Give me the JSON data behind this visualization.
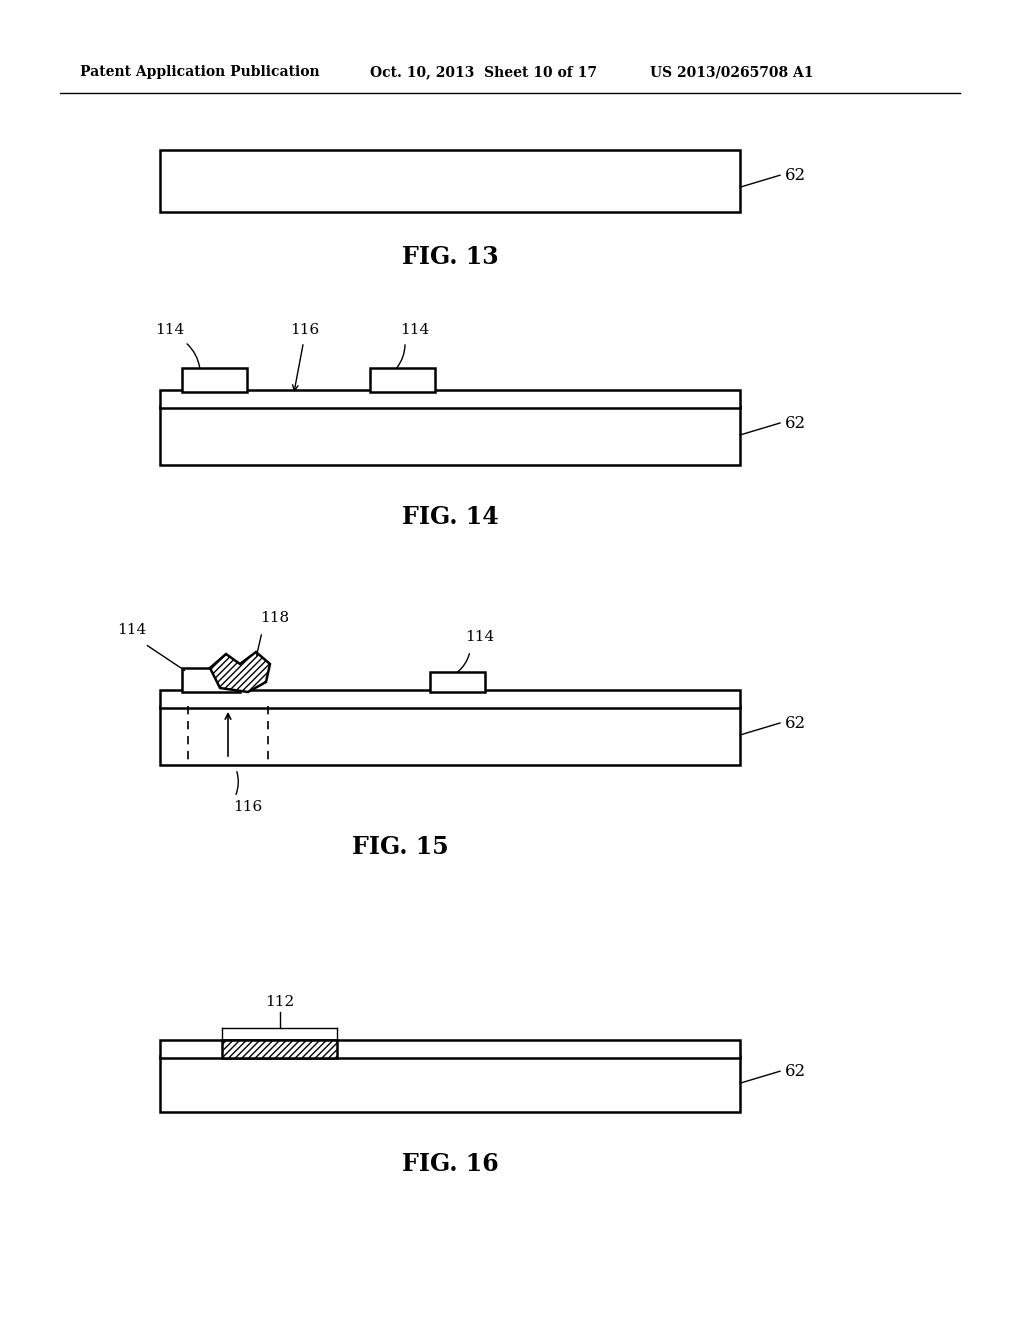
{
  "bg_color": "#ffffff",
  "header_left": "Patent Application Publication",
  "header_mid": "Oct. 10, 2013  Sheet 10 of 17",
  "header_right": "US 2013/0265708 A1",
  "fig13_label": "FIG. 13",
  "fig14_label": "FIG. 14",
  "fig15_label": "FIG. 15",
  "fig16_label": "FIG. 16",
  "label_62": "62",
  "label_114": "114",
  "label_116": "116",
  "label_118": "118",
  "label_112": "112"
}
